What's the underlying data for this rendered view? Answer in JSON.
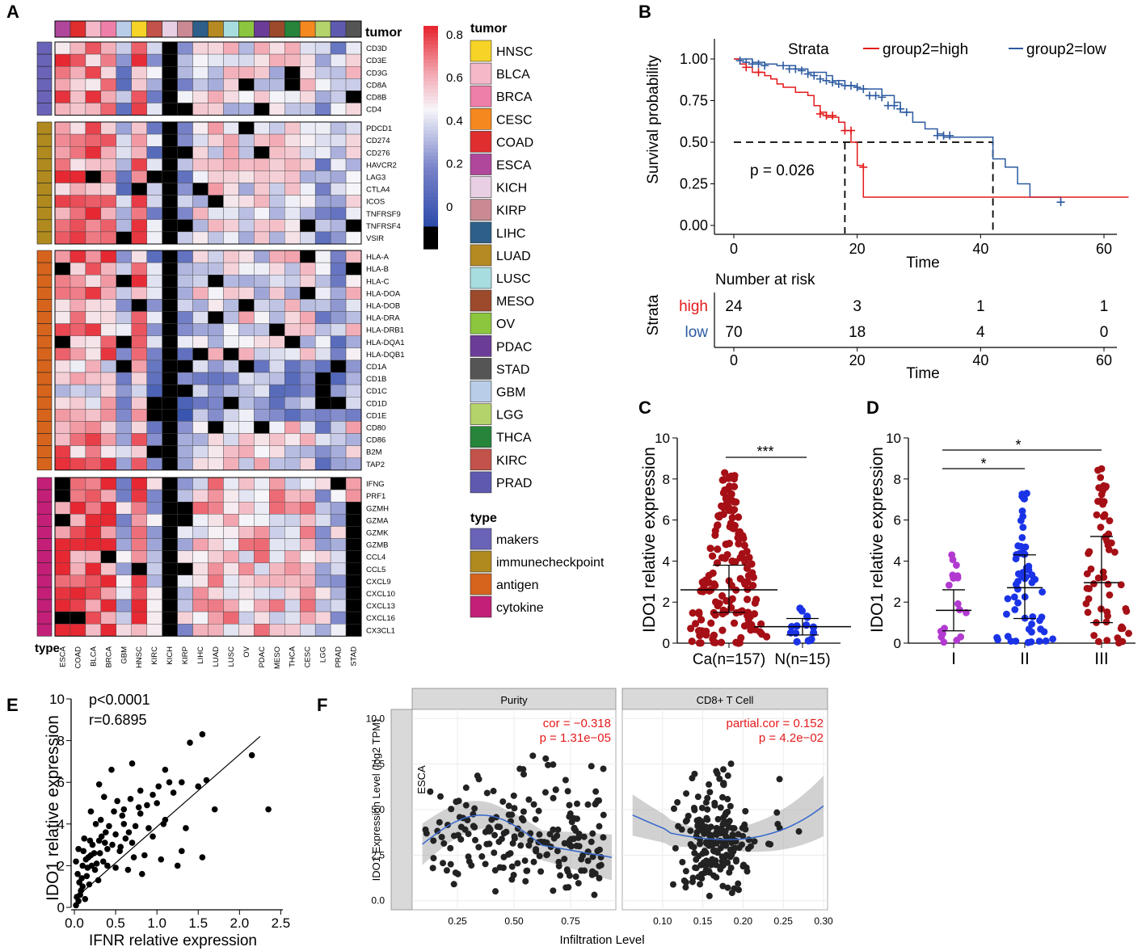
{
  "colors": {
    "high": "#e41a1c",
    "low": "#2c5aa0",
    "red_dot": "#a50f15",
    "blue_dot": "#1a33e6",
    "purple_dot": "#b23ad0",
    "line_blue": "#3366cc"
  },
  "panels": {
    "A": {
      "label": "A",
      "tumor_header": "tumor",
      "type_header": "type",
      "columns": [
        "ESCA",
        "COAD",
        "BLCA",
        "BRCA",
        "GBM",
        "HNSC",
        "KIRC",
        "KICH",
        "KIRP",
        "LIHC",
        "LUAD",
        "LUSC",
        "OV",
        "PDAC",
        "MESO",
        "THCA",
        "CESC",
        "LGG",
        "PRAD",
        "STAD"
      ],
      "groups": [
        {
          "type": "makers",
          "genes": [
            "CD3D",
            "CD3E",
            "CD3G",
            "CD8A",
            "CD8B",
            "CD4"
          ]
        },
        {
          "type": "immunecheckpoint",
          "genes": [
            "PDCD1",
            "CD274",
            "CD276",
            "HAVCR2",
            "LAG3",
            "CTLA4",
            "ICOS",
            "TNFRSF9",
            "TNFRSF4",
            "VSIR"
          ]
        },
        {
          "type": "antigen",
          "genes": [
            "HLA-A",
            "HLA-B",
            "HLA-C",
            "HLA-DOA",
            "HLA-DOB",
            "HLA-DRA",
            "HLA-DRB1",
            "HLA-DQA1",
            "HLA-DQB1",
            "CD1A",
            "CD1B",
            "CD1C",
            "CD1D",
            "CD1E",
            "CD80",
            "CD86",
            "B2M",
            "TAP2"
          ]
        },
        {
          "type": "cytokine",
          "genes": [
            "IFNG",
            "PRF1",
            "GZMH",
            "GZMA",
            "GZMK",
            "GZMB",
            "CCL4",
            "CCL5",
            "CXCL9",
            "CXCL10",
            "CXCL13",
            "CXCL16",
            "CX3CL1"
          ]
        }
      ],
      "colorbar_ticks": [
        "0.8",
        "0.6",
        "0.4",
        "0.2",
        "0"
      ],
      "tumor_legend": [
        {
          "name": "HNSC",
          "color": "#f5d327"
        },
        {
          "name": "BLCA",
          "color": "#f4b8c8"
        },
        {
          "name": "BRCA",
          "color": "#ee7fa8"
        },
        {
          "name": "CESC",
          "color": "#f5891f"
        },
        {
          "name": "COAD",
          "color": "#e02e2e"
        },
        {
          "name": "ESCA",
          "color": "#b0479b"
        },
        {
          "name": "KICH",
          "color": "#e8cfe3"
        },
        {
          "name": "KIRP",
          "color": "#c98a94"
        },
        {
          "name": "LIHC",
          "color": "#2d5f8a"
        },
        {
          "name": "LUAD",
          "color": "#b58a22"
        },
        {
          "name": "LUSC",
          "color": "#a8dde0"
        },
        {
          "name": "MESO",
          "color": "#9c4a2b"
        },
        {
          "name": "OV",
          "color": "#8cc63f"
        },
        {
          "name": "PDAC",
          "color": "#6c3d98"
        },
        {
          "name": "STAD",
          "color": "#555555"
        },
        {
          "name": "GBM",
          "color": "#b9cde8"
        },
        {
          "name": "LGG",
          "color": "#b5d36b"
        },
        {
          "name": "THCA",
          "color": "#26843b"
        },
        {
          "name": "KIRC",
          "color": "#c2524a"
        },
        {
          "name": "PRAD",
          "color": "#5e5ab0"
        }
      ],
      "type_legend_title": "type",
      "type_legend": [
        {
          "name": "makers",
          "color": "#6a64b8"
        },
        {
          "name": "immunecheckpoint",
          "color": "#b08a1e"
        },
        {
          "name": "antigen",
          "color": "#d6641c"
        },
        {
          "name": "cytokine",
          "color": "#c41f78"
        }
      ]
    },
    "B": {
      "label": "B",
      "legend_title": "Strata",
      "legend_high": "group2=high",
      "legend_low": "group2=low",
      "ylabel": "Survival probability",
      "xlabel": "Time",
      "pvalue": "p = 0.026",
      "risk_title": "Number at risk",
      "risk_ylabel": "Strata",
      "risk_rows": [
        {
          "label": "high",
          "values": [
            "24",
            "3",
            "1",
            "1"
          ]
        },
        {
          "label": "low",
          "values": [
            "70",
            "18",
            "4",
            "0"
          ]
        }
      ],
      "x_ticks": [
        0,
        20,
        40,
        60
      ],
      "y_ticks": [
        "0.00",
        "0.25",
        "0.50",
        "0.75",
        "1.00"
      ],
      "median_high": 18,
      "median_low": 42,
      "high_curve": [
        [
          0,
          1.0
        ],
        [
          1,
          0.97
        ],
        [
          2,
          0.95
        ],
        [
          3,
          0.92
        ],
        [
          5,
          0.9
        ],
        [
          6,
          0.88
        ],
        [
          7,
          0.85
        ],
        [
          8,
          0.83
        ],
        [
          10,
          0.8
        ],
        [
          12,
          0.78
        ],
        [
          13,
          0.72
        ],
        [
          14,
          0.68
        ],
        [
          15,
          0.65
        ],
        [
          17,
          0.62
        ],
        [
          18,
          0.57
        ],
        [
          19,
          0.5
        ],
        [
          20,
          0.36
        ],
        [
          21,
          0.17
        ],
        [
          64,
          0.17
        ]
      ],
      "low_curve": [
        [
          0,
          1.0
        ],
        [
          3,
          0.98
        ],
        [
          5,
          0.97
        ],
        [
          7,
          0.96
        ],
        [
          10,
          0.94
        ],
        [
          12,
          0.92
        ],
        [
          15,
          0.9
        ],
        [
          16,
          0.87
        ],
        [
          18,
          0.84
        ],
        [
          20,
          0.82
        ],
        [
          24,
          0.78
        ],
        [
          26,
          0.74
        ],
        [
          27,
          0.68
        ],
        [
          29,
          0.62
        ],
        [
          31,
          0.58
        ],
        [
          33,
          0.55
        ],
        [
          34,
          0.53
        ],
        [
          41,
          0.53
        ],
        [
          42,
          0.4
        ],
        [
          44,
          0.35
        ],
        [
          46,
          0.25
        ],
        [
          48,
          0.17
        ],
        [
          52,
          0.17
        ],
        [
          53,
          0.15
        ]
      ],
      "high_censor": [
        [
          2,
          0.95
        ],
        [
          4,
          0.92
        ],
        [
          14,
          0.67
        ],
        [
          15,
          0.66
        ],
        [
          16,
          0.66
        ],
        [
          18,
          0.57
        ],
        [
          19,
          0.57
        ],
        [
          21,
          0.35
        ]
      ],
      "low_censor": [
        [
          1,
          0.99
        ],
        [
          2,
          0.98
        ],
        [
          3,
          0.97
        ],
        [
          4,
          0.97
        ],
        [
          5,
          0.96
        ],
        [
          8,
          0.96
        ],
        [
          9,
          0.94
        ],
        [
          10,
          0.94
        ],
        [
          11,
          0.93
        ],
        [
          12,
          0.91
        ],
        [
          13,
          0.9
        ],
        [
          14,
          0.88
        ],
        [
          15,
          0.87
        ],
        [
          16,
          0.86
        ],
        [
          17,
          0.85
        ],
        [
          18,
          0.84
        ],
        [
          19,
          0.84
        ],
        [
          20,
          0.83
        ],
        [
          21,
          0.82
        ],
        [
          22,
          0.78
        ],
        [
          23,
          0.78
        ],
        [
          24,
          0.77
        ],
        [
          25,
          0.72
        ],
        [
          26,
          0.72
        ],
        [
          27,
          0.7
        ],
        [
          28,
          0.68
        ],
        [
          33,
          0.54
        ],
        [
          34,
          0.54
        ],
        [
          35,
          0.54
        ],
        [
          53,
          0.14
        ]
      ]
    },
    "C": {
      "label": "C",
      "ylabel": "IDO1 relative expression",
      "categories": [
        "Ca(n=157)",
        "N(n=15)"
      ],
      "y_ticks": [
        0,
        2,
        4,
        6,
        8,
        10
      ],
      "ylim": [
        0,
        10
      ],
      "means": [
        2.6,
        0.8
      ],
      "sd": [
        [
          1.5,
          3.8
        ],
        [
          0.4,
          1.2
        ]
      ],
      "significance": "***"
    },
    "D": {
      "label": "D",
      "ylabel": "IDO1 relative expression",
      "categories": [
        "I",
        "II",
        "III"
      ],
      "y_ticks": [
        0,
        2,
        4,
        6,
        8,
        10
      ],
      "ylim": [
        0,
        10
      ],
      "means": [
        1.6,
        2.7,
        2.95
      ],
      "sd": [
        [
          0.6,
          2.6
        ],
        [
          1.2,
          4.3
        ],
        [
          1.0,
          5.2
        ]
      ],
      "sig1": "*",
      "sig2": "*"
    },
    "E": {
      "label": "E",
      "pvalue": "p<0.0001",
      "r": "r=0.6895",
      "ylabel": "IDO1 relative expression",
      "xlabel": "IFNR relative expression",
      "x_ticks": [
        "0.0",
        "0.5",
        "1.0",
        "1.5",
        "2.0",
        "2.5"
      ],
      "y_ticks": [
        "0",
        "2",
        "4",
        "6",
        "8",
        "10"
      ],
      "xlim": [
        0,
        2.5
      ],
      "ylim": [
        0,
        10
      ],
      "fit": [
        [
          0,
          0.4
        ],
        [
          2.25,
          8.2
        ]
      ],
      "points": [
        [
          0.05,
          0.3
        ],
        [
          0.1,
          1.0
        ],
        [
          0.15,
          1.5
        ],
        [
          0.2,
          2.5
        ],
        [
          0.3,
          3.2
        ],
        [
          0.4,
          2.8
        ],
        [
          0.5,
          3.5
        ],
        [
          0.6,
          4.0
        ],
        [
          0.7,
          3.1
        ],
        [
          0.8,
          4.5
        ],
        [
          0.9,
          3.8
        ],
        [
          1.0,
          5.0
        ],
        [
          1.1,
          4.2
        ],
        [
          1.2,
          5.5
        ],
        [
          1.3,
          6.0
        ],
        [
          1.4,
          7.9
        ],
        [
          1.5,
          5.8
        ],
        [
          1.55,
          8.3
        ],
        [
          1.6,
          6.1
        ],
        [
          1.7,
          4.7
        ],
        [
          2.15,
          7.3
        ],
        [
          2.35,
          4.7
        ],
        [
          0.3,
          5.9
        ],
        [
          0.45,
          6.6
        ],
        [
          0.7,
          6.9
        ],
        [
          0.95,
          5.4
        ],
        [
          1.1,
          6.6
        ],
        [
          0.2,
          4.6
        ],
        [
          0.12,
          3.3
        ],
        [
          0.25,
          1.8
        ],
        [
          0.35,
          2.2
        ],
        [
          0.55,
          2.7
        ],
        [
          0.65,
          1.8
        ],
        [
          0.85,
          2.5
        ],
        [
          1.05,
          2.3
        ],
        [
          1.25,
          2.0
        ],
        [
          1.35,
          3.8
        ],
        [
          1.55,
          2.4
        ],
        [
          1.3,
          2.7
        ],
        [
          0.02,
          0.1
        ],
        [
          0.03,
          0.5
        ],
        [
          0.06,
          1.2
        ],
        [
          0.08,
          0.8
        ],
        [
          0.1,
          2.0
        ],
        [
          0.14,
          2.3
        ],
        [
          0.18,
          1.1
        ],
        [
          0.22,
          3.0
        ],
        [
          0.27,
          2.1
        ],
        [
          0.32,
          4.2
        ],
        [
          0.38,
          3.6
        ],
        [
          0.42,
          3.9
        ],
        [
          0.48,
          4.6
        ],
        [
          0.52,
          5.1
        ],
        [
          0.58,
          4.4
        ],
        [
          0.62,
          3.3
        ],
        [
          0.68,
          5.2
        ],
        [
          0.72,
          2.4
        ],
        [
          0.78,
          4.8
        ],
        [
          0.82,
          1.6
        ],
        [
          0.88,
          4.9
        ],
        [
          0.95,
          3.4
        ],
        [
          1.02,
          5.8
        ],
        [
          1.08,
          4.0
        ],
        [
          1.15,
          6.0
        ],
        [
          0.04,
          1.6
        ],
        [
          0.07,
          0.6
        ],
        [
          0.09,
          1.4
        ],
        [
          0.11,
          2.7
        ],
        [
          0.16,
          1.9
        ],
        [
          0.19,
          3.2
        ],
        [
          0.24,
          2.6
        ],
        [
          0.29,
          1.3
        ],
        [
          0.33,
          3.4
        ],
        [
          0.36,
          5.3
        ],
        [
          0.4,
          2.0
        ],
        [
          0.46,
          3.0
        ],
        [
          0.5,
          1.9
        ],
        [
          0.56,
          2.9
        ],
        [
          0.6,
          4.7
        ],
        [
          0.66,
          3.6
        ],
        [
          0.74,
          3.9
        ],
        [
          0.8,
          5.6
        ],
        [
          0.02,
          2.2
        ],
        [
          0.05,
          2.8
        ],
        [
          0.13,
          0.4
        ],
        [
          0.17,
          2.4
        ],
        [
          0.21,
          2.0
        ],
        [
          0.26,
          4.0
        ],
        [
          0.31,
          2.6
        ],
        [
          0.37,
          3.1
        ]
      ]
    },
    "F": {
      "label": "F",
      "ylabel": "IDO1 Expression Level (log2 TPM)",
      "xlabel": "Infiltration Level",
      "row_label": "ESCA",
      "panels": [
        {
          "title": "Purity",
          "cor": "cor = −0.318",
          "p": "p = 1.31e−05",
          "x_ticks": [
            "0.25",
            "0.50",
            "0.75"
          ],
          "xlim": [
            0.05,
            0.95
          ]
        },
        {
          "title": "CD8+ T Cell",
          "cor": "partial.cor = 0.152",
          "p": "p = 4.2e−02",
          "x_ticks": [
            "0.10",
            "0.15",
            "0.20",
            "0.25",
            "0.30"
          ],
          "xlim": [
            0.05,
            0.305
          ]
        }
      ],
      "y_ticks": [
        "0.0",
        "2.5",
        "5.0",
        "7.5",
        "10.0"
      ],
      "ylim": [
        -0.5,
        10.5
      ]
    }
  }
}
